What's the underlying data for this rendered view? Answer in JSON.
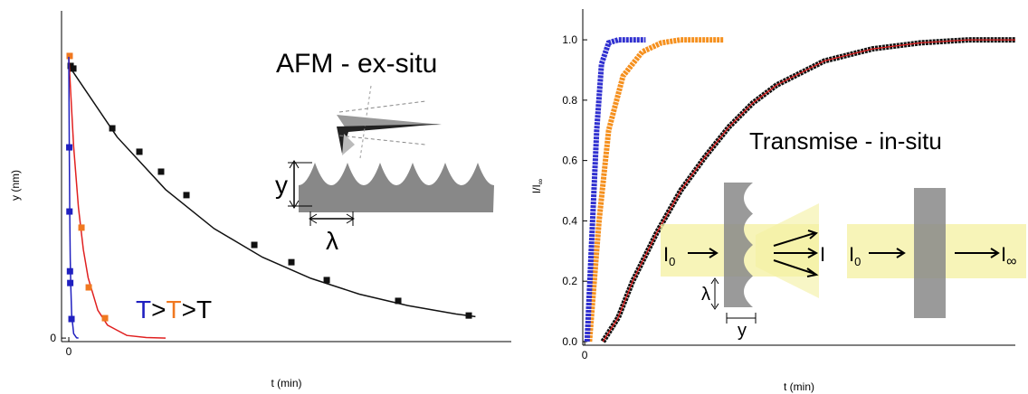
{
  "chart_data": [
    {
      "type": "scatter",
      "x_label": "t (min)",
      "y_label": "y (nm)",
      "xlim": [
        -0.075,
        4.57
      ],
      "ylim": [
        -0.012,
        1.117
      ],
      "xticks": [
        0
      ],
      "yticks": [
        0
      ],
      "annotation": "AFM - ex-situ",
      "temperature_label": [
        {
          "text": "T",
          "color": "#2020c0"
        },
        {
          "text": ">",
          "color": "#000000"
        },
        {
          "text": "T",
          "color": "#f07820"
        },
        {
          "text": ">",
          "color": "#000000"
        },
        {
          "text": "T",
          "color": "#000000"
        }
      ],
      "inset_labels": {
        "height": "y",
        "period": "λ"
      },
      "series": [
        {
          "color": "#111111",
          "fit_color": "#111111",
          "x": [
            0.019,
            0.047,
            0.449,
            0.729,
            0.953,
            1.215,
            1.916,
            2.299,
            2.664,
            3.402,
            4.131
          ],
          "values": [
            0.929,
            0.92,
            0.716,
            0.636,
            0.568,
            0.488,
            0.318,
            0.259,
            0.198,
            0.127,
            0.077
          ],
          "fit_x": [
            0,
            0.5,
            1,
            1.5,
            2,
            2.5,
            3,
            3.5,
            4,
            4.2
          ],
          "fit_values": [
            0.93,
            0.686,
            0.507,
            0.374,
            0.276,
            0.204,
            0.15,
            0.111,
            0.082,
            0.073
          ]
        },
        {
          "color": "#f07820",
          "fit_color": "#e02020",
          "x": [
            0.009,
            0.131,
            0.206,
            0.374
          ],
          "values": [
            0.963,
            0.377,
            0.173,
            0.068
          ],
          "fit_x": [
            0,
            0.05,
            0.1,
            0.15,
            0.2,
            0.3,
            0.4,
            0.6,
            0.8,
            1.0
          ],
          "fit_values": [
            0.96,
            0.653,
            0.445,
            0.302,
            0.206,
            0.095,
            0.044,
            0.009,
            0.002,
            0
          ]
        },
        {
          "color": "#2020c0",
          "fit_color": "#2020c0",
          "x": [
            0.005,
            0.007,
            0.012,
            0.015,
            0.028
          ],
          "values": [
            0.651,
            0.432,
            0.228,
            0.188,
            0.065
          ],
          "fit_x": [
            0,
            0.005,
            0.01,
            0.015,
            0.02,
            0.03,
            0.05,
            0.08,
            0.1
          ],
          "fit_values": [
            0.96,
            0.632,
            0.417,
            0.275,
            0.181,
            0.079,
            0.015,
            0.001,
            0
          ]
        }
      ]
    },
    {
      "type": "line",
      "x_label": "t (min)",
      "y_label": {
        "base": "I/I",
        "sub": "∞"
      },
      "xlim": [
        -0.04,
        8.98
      ],
      "ylim": [
        -0.012,
        1.102
      ],
      "xticks": [
        0
      ],
      "yticks": [
        {
          "value": 0,
          "label": "0.0"
        },
        0.2,
        0.4,
        0.6,
        0.8,
        {
          "value": 1,
          "label": "1.0"
        }
      ],
      "annotation": "Transmise - in-situ",
      "inset_labels": {
        "incident": {
          "base": "I",
          "sub": "0"
        },
        "transmitted": "I",
        "saturated": {
          "base": "I",
          "sub": "∞"
        },
        "period": "λ",
        "height": "y"
      },
      "series": [
        {
          "color": "#111111",
          "fit_color": "#e02020",
          "x": [
            0.38,
            0.7,
            1.0,
            1.5,
            2,
            2.5,
            3,
            3.5,
            4,
            5,
            6,
            7,
            8,
            8.98
          ],
          "values": [
            0,
            0.08,
            0.2,
            0.36,
            0.5,
            0.61,
            0.71,
            0.79,
            0.85,
            0.93,
            0.97,
            0.99,
            1.0,
            1.0
          ]
        },
        {
          "color": "#f5901e",
          "x": [
            0.1,
            0.3,
            0.5,
            0.8,
            1.2,
            1.6,
            2.0,
            2.9
          ],
          "values": [
            0,
            0.4,
            0.7,
            0.88,
            0.96,
            0.99,
            1.0,
            1.0
          ]
        },
        {
          "color": "#3030d0",
          "x": [
            0.05,
            0.15,
            0.25,
            0.35,
            0.5,
            0.7,
            1.27
          ],
          "values": [
            0,
            0.35,
            0.7,
            0.92,
            0.99,
            1.0,
            1.0
          ]
        }
      ]
    }
  ]
}
